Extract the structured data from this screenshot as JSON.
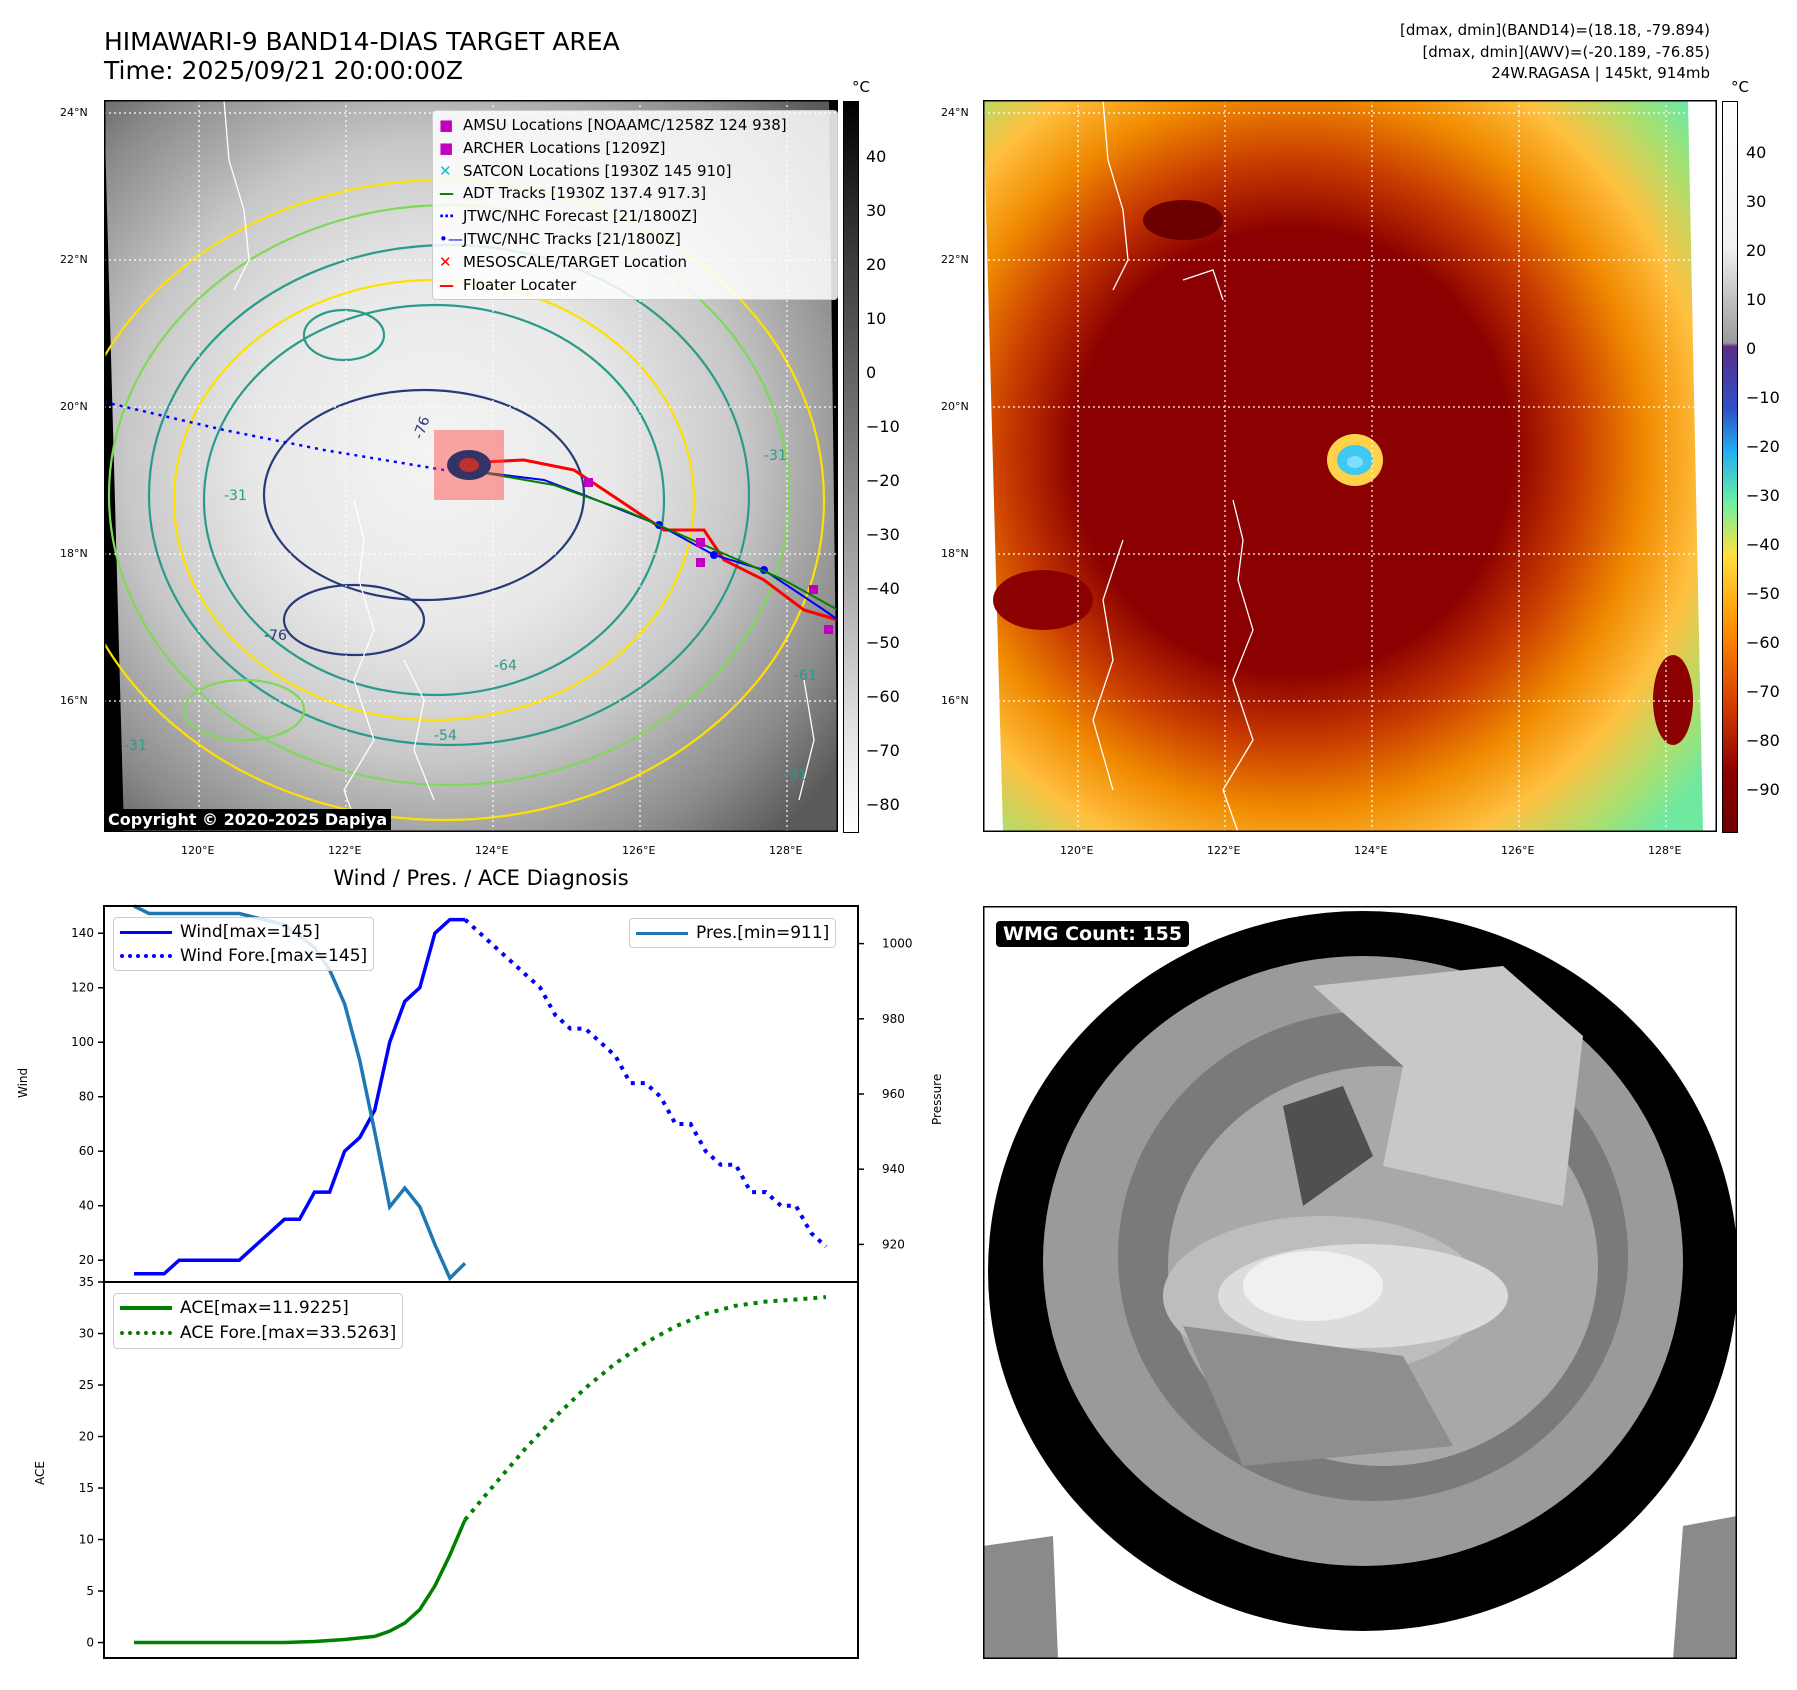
{
  "header": {
    "title_line1": "HIMAWARI-9 BAND14-DIAS TARGET AREA",
    "title_line2": "Time: 2025/09/21 20:00:00Z",
    "info_line1": "[dmax, dmin](BAND14)=(18.18, -79.894)",
    "info_line2": "[dmax, dmin](AWV)=(-20.189, -76.85)",
    "info_line3": "24W.RAGASA | 145kt, 914mb"
  },
  "copyright": "Copyright © 2020-2025 Dapiya",
  "colorbar_unit": "°C",
  "map_axes": {
    "lon_ticks": [
      "120°E",
      "122°E",
      "124°E",
      "126°E",
      "128°E"
    ],
    "lat_ticks": [
      "24°N",
      "22°N",
      "20°N",
      "18°N",
      "16°N"
    ]
  },
  "colorbar_ir": {
    "ticks": [
      "40",
      "30",
      "20",
      "10",
      "0",
      "−10",
      "−20",
      "−30",
      "−40",
      "−50",
      "−60",
      "−70",
      "−80"
    ]
  },
  "colorbar_color": {
    "ticks": [
      "40",
      "30",
      "20",
      "10",
      "0",
      "−10",
      "−20",
      "−30",
      "−40",
      "−50",
      "−60",
      "−70",
      "−80",
      "−90"
    ]
  },
  "contour_labels": [
    "-76",
    "-64",
    "-54",
    "-31",
    "-31",
    "-31",
    "-76",
    "-61",
    "-31"
  ],
  "legend_map": [
    {
      "label": "AMSU Locations [NOAAMC/1258Z 124 938]",
      "marker": "square",
      "color": "#c000c0"
    },
    {
      "label": "ARCHER Locations [1209Z]",
      "marker": "square",
      "color": "#c000c0"
    },
    {
      "label": "SATCON Locations [1930Z 145 910]",
      "marker": "x",
      "color": "#17becf"
    },
    {
      "label": "ADT Tracks [1930Z 137.4 917.3]",
      "marker": "line",
      "color": "#008000"
    },
    {
      "label": "JTWC/NHC Forecast [21/1800Z]",
      "marker": "dotted",
      "color": "#0000ff"
    },
    {
      "label": "JTWC/NHC Tracks [21/1800Z]",
      "marker": "line-dot",
      "color": "#0000ff"
    },
    {
      "label": "MESOSCALE/TARGET Location",
      "marker": "x",
      "color": "#ff0000"
    },
    {
      "label": "Floater Locater",
      "marker": "line",
      "color": "#ff0000"
    }
  ],
  "wmg": {
    "label": "WMG Count: 155"
  },
  "chart_data": [
    {
      "type": "line",
      "title": "Wind / Pres. / ACE Diagnosis",
      "ylabel": "Wind",
      "y2label": "Pressure",
      "ylim": [
        12,
        150
      ],
      "y2lim": [
        910,
        1010
      ],
      "yticks": [
        "20",
        "40",
        "60",
        "80",
        "100",
        "120",
        "140"
      ],
      "y2ticks": [
        "920",
        "940",
        "960",
        "980",
        "1000"
      ],
      "legend": {
        "wind": "Wind[max=145]",
        "wind_fore": "Wind Fore.[max=145]",
        "pres": "Pres.[min=911]"
      },
      "series": [
        {
          "name": "Wind[max=145]",
          "style": "solid",
          "color": "#0000ff",
          "x": [
            0,
            1,
            2,
            3,
            4,
            5,
            6,
            7,
            8,
            9,
            10,
            11,
            12,
            13,
            14,
            15,
            16,
            17,
            18,
            19,
            20,
            21,
            22,
            23,
            24,
            25,
            26
          ],
          "values": [
            15,
            15,
            15,
            20,
            20,
            20,
            20,
            20,
            25,
            30,
            35,
            35,
            45,
            45,
            60,
            65,
            75,
            100,
            115,
            120,
            140,
            145,
            145,
            null,
            null,
            null,
            null
          ]
        },
        {
          "name": "Wind Fore.[max=145]",
          "style": "dotted",
          "color": "#0000ff",
          "x": [
            22,
            23,
            24,
            25,
            26,
            27,
            28,
            29,
            30,
            31,
            32,
            33,
            34,
            35,
            36,
            37,
            38,
            39,
            40,
            41,
            42,
            43,
            44,
            45,
            46
          ],
          "values": [
            145,
            140,
            135,
            130,
            125,
            120,
            110,
            105,
            105,
            100,
            95,
            85,
            85,
            80,
            70,
            70,
            60,
            55,
            55,
            45,
            45,
            40,
            40,
            30,
            25
          ]
        },
        {
          "name": "Pres.[min=911]",
          "style": "solid",
          "color": "#1f77b4",
          "x": [
            0,
            1,
            2,
            3,
            4,
            5,
            6,
            7,
            8,
            9,
            10,
            11,
            12,
            13,
            14,
            15,
            16,
            17,
            18,
            19,
            20,
            21,
            22
          ],
          "values": [
            1010,
            1008,
            1008,
            1008,
            1008,
            1008,
            1008,
            1008,
            1007,
            1006,
            1005,
            1002,
            999,
            993,
            984,
            969,
            950,
            930,
            935,
            930,
            920,
            911,
            915
          ]
        }
      ]
    },
    {
      "type": "line",
      "ylabel": "ACE",
      "ylim": [
        -1.5,
        35
      ],
      "yticks": [
        "0",
        "5",
        "10",
        "15",
        "20",
        "25",
        "30",
        "35"
      ],
      "legend": {
        "ace": "ACE[max=11.9225]",
        "ace_fore": "ACE Fore.[max=33.5263]"
      },
      "series": [
        {
          "name": "ACE[max=11.9225]",
          "style": "solid",
          "color": "#008000",
          "x": [
            0,
            2,
            4,
            6,
            8,
            10,
            12,
            14,
            16,
            17,
            18,
            19,
            20,
            21,
            22
          ],
          "values": [
            0,
            0,
            0,
            0,
            0,
            0,
            0.1,
            0.3,
            0.6,
            1.1,
            1.9,
            3.2,
            5.5,
            8.5,
            11.92
          ]
        },
        {
          "name": "ACE Fore.[max=33.5263]",
          "style": "dotted",
          "color": "#008000",
          "x": [
            22,
            24,
            26,
            28,
            30,
            32,
            34,
            36,
            38,
            40,
            42,
            44,
            46
          ],
          "values": [
            11.92,
            15.4,
            18.8,
            21.9,
            24.7,
            27.1,
            29.1,
            30.7,
            31.9,
            32.7,
            33.1,
            33.3,
            33.53
          ]
        }
      ]
    }
  ]
}
